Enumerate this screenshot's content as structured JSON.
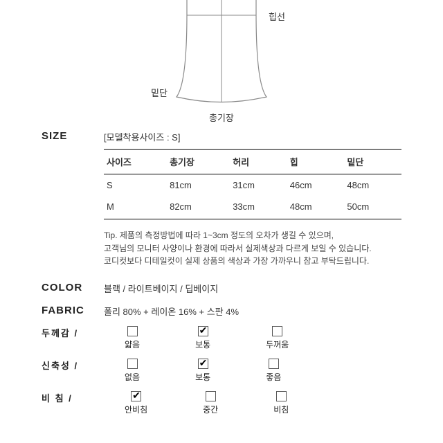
{
  "diagram": {
    "label_hip": "힙선",
    "label_hem": "밑단",
    "label_length": "총기장",
    "stroke": "#777",
    "text_color": "#333"
  },
  "size": {
    "title": "SIZE",
    "model_note": "[모델착용사이즈 : S]",
    "columns": [
      "사이즈",
      "총기장",
      "허리",
      "힙",
      "밑단"
    ],
    "rows": [
      [
        "S",
        "81cm",
        "31cm",
        "46cm",
        "48cm"
      ],
      [
        "M",
        "82cm",
        "33cm",
        "48cm",
        "50cm"
      ]
    ],
    "tip_lines": [
      "Tip. 제품의 측정방법에 따라 1~3cm 정도의 오차가 생길 수 있으며,",
      "고객님의 모니터 사양이나 환경에 따라서 실제색상과 다르게 보일 수 있습니다.",
      "코디컷보다 디테일컷이 실제 상품의 색상과 가장 가까우니 참고 부탁드립니다."
    ]
  },
  "color": {
    "title": "COLOR",
    "value": "블랙 / 라이트베이지 / 딥베이지"
  },
  "fabric": {
    "title": "FABRIC",
    "value": "폴리 80% + 레이온 16% + 스판 4%"
  },
  "attrs": [
    {
      "label": "두께감 /",
      "options": [
        "얇음",
        "보통",
        "두꺼움"
      ],
      "checked_index": 1
    },
    {
      "label": "신축성 /",
      "options": [
        "없음",
        "보통",
        "좋음"
      ],
      "checked_index": 1
    },
    {
      "label": "비 침 /",
      "options": [
        "안비침",
        "중간",
        "비침"
      ],
      "checked_index": 0
    }
  ]
}
